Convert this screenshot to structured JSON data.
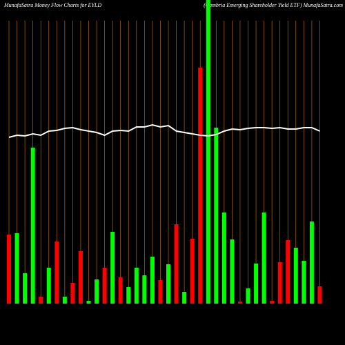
{
  "chart_data": {
    "type": "bar",
    "title": "MunafaSatra  Money Flow  Charts for EYLD",
    "subtitle": "(Cambria  Emerging Shareholder Yield ETF) MunafaSatra.com",
    "categories": [
      null,
      null,
      null,
      null,
      null,
      null,
      null,
      null,
      null,
      null,
      null,
      null,
      null,
      null,
      null,
      null,
      null,
      null,
      null,
      null,
      null,
      null,
      null,
      null,
      null,
      null,
      null,
      null,
      null,
      null,
      null,
      null,
      null,
      null,
      null,
      null,
      null,
      null,
      null,
      null
    ],
    "values": [
      100,
      102,
      44,
      226,
      10,
      52,
      90,
      10,
      30,
      76,
      4,
      35,
      52,
      104,
      38,
      24,
      52,
      41,
      68,
      34,
      57,
      115,
      17,
      94,
      342,
      460,
      255,
      132,
      93,
      3,
      22,
      58,
      132,
      4,
      60,
      92,
      81,
      62,
      119,
      25
    ],
    "colors": [
      "#ff0000",
      "#00ff00",
      "#00ff00",
      "#00ff00",
      "#ff0000",
      "#00ff00",
      "#ff0000",
      "#00ff00",
      "#ff0000",
      "#ff0000",
      "#00ff00",
      "#00ff00",
      "#ff0000",
      "#00ff00",
      "#ff0000",
      "#00ff00",
      "#00ff00",
      "#00ff00",
      "#00ff00",
      "#ff0000",
      "#00ff00",
      "#ff0000",
      "#00ff00",
      "#ff0000",
      "#ff0000",
      "#00ff00",
      "#00ff00",
      "#00ff00",
      "#00ff00",
      "#ff0000",
      "#00ff00",
      "#00ff00",
      "#00ff00",
      "#ff0000",
      "#ff0000",
      "#ff0000",
      "#00ff00",
      "#00ff00",
      "#00ff00",
      "#ff0000"
    ],
    "line": {
      "color": "#ffffff",
      "values": [
        241,
        244,
        243,
        246,
        244,
        250,
        251,
        254,
        255,
        252,
        250,
        248,
        244,
        250,
        251,
        250,
        256,
        256,
        259,
        256,
        258,
        250,
        248,
        246,
        244,
        243,
        245,
        250,
        253,
        252,
        254,
        255,
        255,
        254,
        255,
        253,
        253,
        255,
        255,
        250
      ]
    },
    "grid_color": "#b36b00",
    "ylim": [
      0,
      440
    ]
  }
}
